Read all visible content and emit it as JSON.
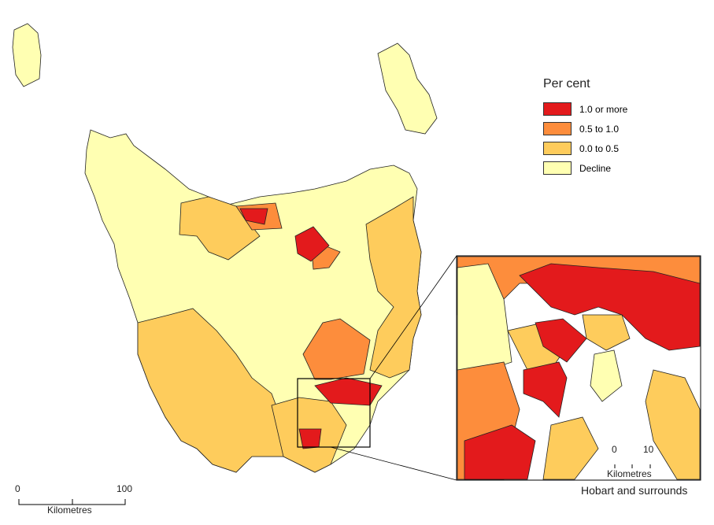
{
  "legend": {
    "title": "Per cent",
    "items": [
      {
        "label": "1.0 or more",
        "color": "#e31a1c"
      },
      {
        "label": "0.5 to 1.0",
        "color": "#fd8d3c"
      },
      {
        "label": "0.0 to 0.5",
        "color": "#fecc5c"
      },
      {
        "label": "Decline",
        "color": "#ffffb2"
      }
    ]
  },
  "main_scale": {
    "start": "0",
    "end": "100",
    "unit": "Kilometres"
  },
  "inset": {
    "caption": "Hobart and surrounds",
    "scale_start": "0",
    "scale_end": "10",
    "unit": "Kilometres"
  }
}
